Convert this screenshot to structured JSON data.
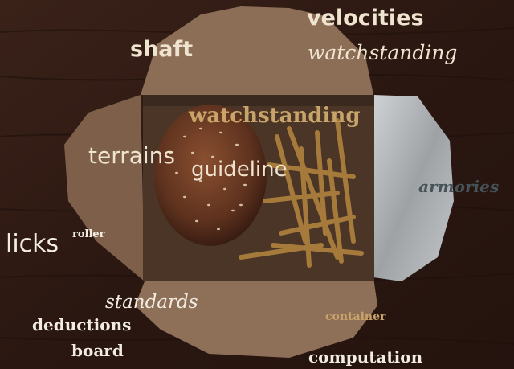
{
  "photo": {
    "subject": "burger-and-fries-in-takeout-box",
    "colors": {
      "table": "#2f1a14",
      "box": "#8a6a52",
      "box_shadow": "#5e4535",
      "bun": "#6b3b24",
      "fries": "#a07838",
      "foil": "#b9bcbf"
    }
  },
  "words": {
    "velocities": {
      "text": "velocities",
      "color": "#efe4cf"
    },
    "shaft": {
      "text": "shaft",
      "color": "#efe4cf"
    },
    "watchstanding_top": {
      "text": "watchstanding",
      "color": "#efe4cf"
    },
    "watchstanding_center": {
      "text": "watchstanding",
      "color": "#c9a46a"
    },
    "terrains": {
      "text": "terrains",
      "color": "#efe4cf"
    },
    "guideline": {
      "text": "guideline",
      "color": "#efe4cf"
    },
    "armories": {
      "text": "armories",
      "color": "#46545a"
    },
    "licks": {
      "text": "licks",
      "color": "#f2ece3"
    },
    "roller": {
      "text": "roller",
      "color": "#f2ece3"
    },
    "standards": {
      "text": "standards",
      "color": "#f2ece3"
    },
    "deductions": {
      "text": "deductions",
      "color": "#f2ece3"
    },
    "board": {
      "text": "board",
      "color": "#f2ece3"
    },
    "container": {
      "text": "container",
      "color": "#c9a46a"
    },
    "computation": {
      "text": "computation",
      "color": "#f2ece3"
    }
  }
}
